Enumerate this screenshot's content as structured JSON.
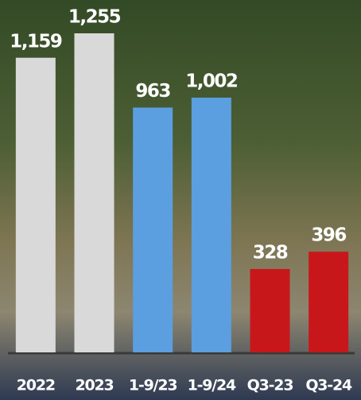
{
  "chart_data": {
    "type": "bar",
    "categories": [
      "2022",
      "2023",
      "1-9/23",
      "1-9/24",
      "Q3-23",
      "Q3-24"
    ],
    "values": [
      1159,
      1255,
      963,
      1002,
      328,
      396
    ],
    "value_labels": [
      "1,159",
      "1,255",
      "963",
      "1,002",
      "328",
      "396"
    ],
    "colors": [
      "#d9d9d9",
      "#d9d9d9",
      "#5b9fe0",
      "#5b9fe0",
      "#c8171a",
      "#c8171a"
    ]
  }
}
